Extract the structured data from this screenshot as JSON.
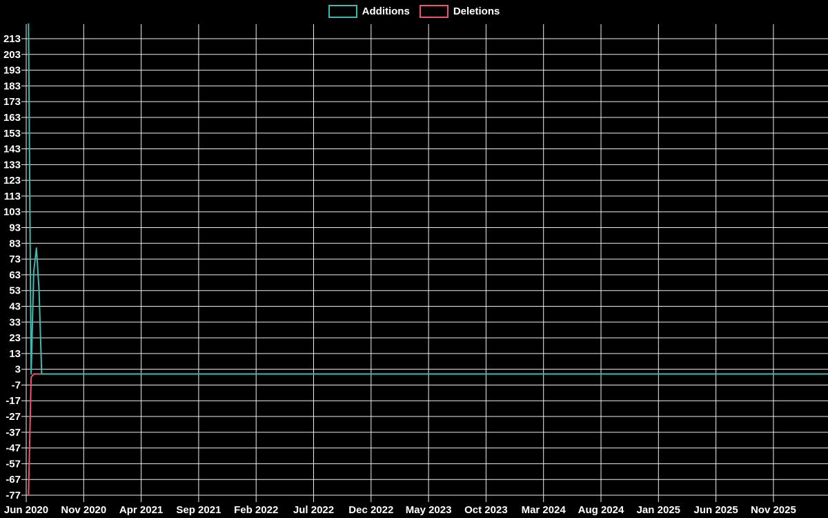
{
  "chart_data": {
    "type": "line",
    "title": "",
    "xlabel": "",
    "ylabel": "",
    "background_color": "#000000",
    "grid": true,
    "grid_color": "#f0f0f0",
    "text_color": "#ffffff",
    "legend_position": "top-center",
    "ylim": [
      -77,
      224
    ],
    "y_ticks": [
      -77,
      -67,
      -57,
      -47,
      -37,
      -27,
      -17,
      -7,
      3,
      13,
      23,
      33,
      43,
      53,
      63,
      73,
      83,
      93,
      103,
      113,
      123,
      133,
      143,
      153,
      163,
      173,
      183,
      193,
      203,
      213
    ],
    "x_tick_labels": [
      "Jun 2020",
      "Nov 2020",
      "Apr 2021",
      "Sep 2021",
      "Feb 2022",
      "Jul 2022",
      "Dec 2022",
      "May 2023",
      "Oct 2023",
      "Mar 2024",
      "Aug 2024",
      "Jan 2025",
      "Jun 2025",
      "Nov 2025"
    ],
    "series": [
      {
        "name": "Additions",
        "color": "#3fbab1",
        "points": [
          [
            "2020-06-07",
            224
          ],
          [
            "2020-06-14",
            0
          ],
          [
            "2020-06-21",
            65
          ],
          [
            "2020-06-28",
            80
          ],
          [
            "2020-07-05",
            53
          ],
          [
            "2020-07-12",
            0
          ],
          [
            "2025-12-28",
            0
          ]
        ]
      },
      {
        "name": "Deletions",
        "color": "#f0546e",
        "points": [
          [
            "2020-06-07",
            -77
          ],
          [
            "2020-06-14",
            -2
          ],
          [
            "2020-06-21",
            0
          ],
          [
            "2025-12-28",
            0
          ]
        ]
      }
    ]
  }
}
